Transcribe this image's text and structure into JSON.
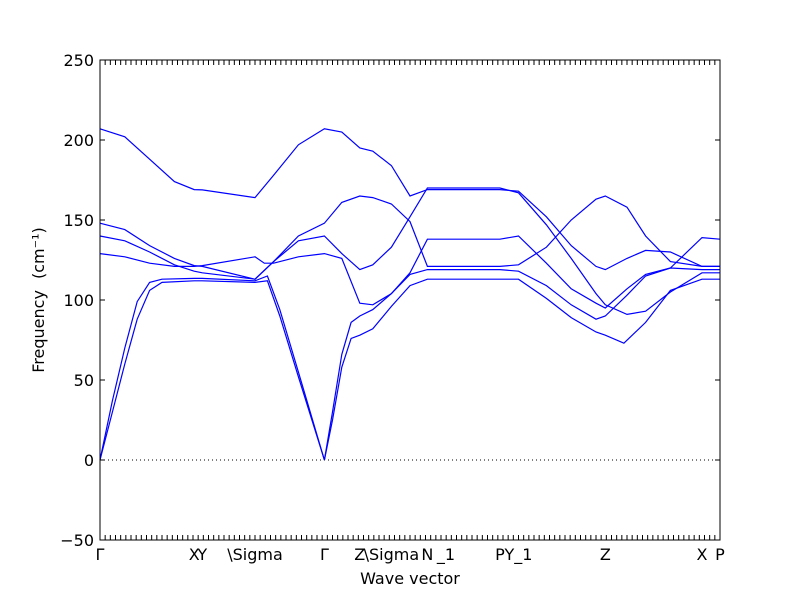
{
  "chart_data": {
    "type": "line",
    "ylabel": "Frequency",
    "ylabel_unit": "(cm⁻¹)",
    "xlabel": "Wave vector",
    "ylim": [
      -50,
      250
    ],
    "yticks": [
      -50,
      0,
      50,
      100,
      150,
      200,
      250
    ],
    "xlim": [
      0,
      1
    ],
    "qpoints": [
      {
        "label": "Γ",
        "x": 0.0
      },
      {
        "label": "X",
        "x": 0.152
      },
      {
        "label": "Y",
        "x": 0.165
      },
      {
        "label": "\\Sigma",
        "x": 0.25
      },
      {
        "label": "Γ",
        "x": 0.362
      },
      {
        "label": "Z",
        "x": 0.419
      },
      {
        "label": "\\Sigma",
        "x": 0.47
      },
      {
        "label": "N",
        "x": 0.528
      },
      {
        "label": "_1",
        "x": 0.558
      },
      {
        "label": "P",
        "x": 0.645
      },
      {
        "label": "Y_1",
        "x": 0.675
      },
      {
        "label": "Z",
        "x": 0.815
      },
      {
        "label": "X",
        "x": 0.971
      },
      {
        "label": "P",
        "x": 1.0
      }
    ],
    "zero_line": true,
    "line_color": "#0000ff",
    "series": [
      {
        "points": [
          [
            0,
            207
          ],
          [
            0.04,
            202
          ],
          [
            0.08,
            188
          ],
          [
            0.12,
            174
          ],
          [
            0.152,
            169
          ],
          [
            0.165,
            168.8
          ],
          [
            0.25,
            164
          ],
          [
            0.28,
            178
          ],
          [
            0.32,
            197
          ],
          [
            0.362,
            207
          ],
          [
            0.39,
            205
          ],
          [
            0.419,
            195
          ],
          [
            0.44,
            193
          ],
          [
            0.47,
            184
          ],
          [
            0.5,
            165
          ],
          [
            0.528,
            169
          ],
          [
            0.6,
            169
          ],
          [
            0.645,
            169
          ],
          [
            0.675,
            168
          ],
          [
            0.72,
            152
          ],
          [
            0.76,
            134
          ],
          [
            0.8,
            121
          ],
          [
            0.815,
            119
          ],
          [
            0.85,
            126
          ],
          [
            0.88,
            131
          ],
          [
            0.92,
            130
          ],
          [
            0.971,
            121
          ],
          [
            1.0,
            121
          ]
        ]
      },
      {
        "points": [
          [
            0,
            148
          ],
          [
            0.04,
            144
          ],
          [
            0.08,
            134
          ],
          [
            0.12,
            126
          ],
          [
            0.152,
            121.5
          ],
          [
            0.165,
            121
          ],
          [
            0.25,
            113
          ],
          [
            0.28,
            124
          ],
          [
            0.32,
            140
          ],
          [
            0.362,
            148
          ],
          [
            0.39,
            161
          ],
          [
            0.419,
            165
          ],
          [
            0.44,
            164
          ],
          [
            0.47,
            160
          ],
          [
            0.5,
            149
          ],
          [
            0.528,
            121
          ],
          [
            0.6,
            121
          ],
          [
            0.645,
            121
          ],
          [
            0.675,
            122
          ],
          [
            0.72,
            133
          ],
          [
            0.76,
            150
          ],
          [
            0.8,
            163
          ],
          [
            0.815,
            165
          ],
          [
            0.85,
            158
          ],
          [
            0.88,
            140
          ],
          [
            0.92,
            124
          ],
          [
            0.971,
            121
          ],
          [
            1.0,
            121
          ]
        ]
      },
      {
        "points": [
          [
            0,
            140
          ],
          [
            0.04,
            137
          ],
          [
            0.08,
            130
          ],
          [
            0.12,
            122
          ],
          [
            0.152,
            118
          ],
          [
            0.165,
            117
          ],
          [
            0.25,
            113
          ],
          [
            0.28,
            124
          ],
          [
            0.32,
            137
          ],
          [
            0.362,
            140
          ],
          [
            0.39,
            129
          ],
          [
            0.419,
            119
          ],
          [
            0.44,
            122
          ],
          [
            0.47,
            133
          ],
          [
            0.5,
            152
          ],
          [
            0.528,
            170
          ],
          [
            0.6,
            170
          ],
          [
            0.645,
            170
          ],
          [
            0.675,
            167
          ],
          [
            0.72,
            147
          ],
          [
            0.76,
            126
          ],
          [
            0.8,
            104
          ],
          [
            0.815,
            97
          ],
          [
            0.85,
            91
          ],
          [
            0.88,
            93
          ],
          [
            0.92,
            105
          ],
          [
            0.971,
            117
          ],
          [
            1.0,
            117
          ]
        ]
      },
      {
        "points": [
          [
            0,
            129
          ],
          [
            0.04,
            127
          ],
          [
            0.08,
            123
          ],
          [
            0.12,
            121
          ],
          [
            0.152,
            121
          ],
          [
            0.165,
            121.5
          ],
          [
            0.25,
            127
          ],
          [
            0.265,
            123
          ],
          [
            0.28,
            123
          ],
          [
            0.32,
            127
          ],
          [
            0.362,
            129
          ],
          [
            0.39,
            126
          ],
          [
            0.419,
            98
          ],
          [
            0.44,
            97
          ],
          [
            0.47,
            104
          ],
          [
            0.5,
            117
          ],
          [
            0.528,
            138
          ],
          [
            0.6,
            138
          ],
          [
            0.645,
            138
          ],
          [
            0.675,
            140
          ],
          [
            0.72,
            123
          ],
          [
            0.76,
            107
          ],
          [
            0.8,
            98
          ],
          [
            0.815,
            95
          ],
          [
            0.85,
            107
          ],
          [
            0.88,
            116
          ],
          [
            0.92,
            120
          ],
          [
            0.971,
            139
          ],
          [
            1.0,
            138
          ]
        ]
      },
      {
        "points": [
          [
            0,
            0
          ],
          [
            0.02,
            37
          ],
          [
            0.04,
            70
          ],
          [
            0.06,
            99
          ],
          [
            0.08,
            111
          ],
          [
            0.1,
            113
          ],
          [
            0.152,
            113.5
          ],
          [
            0.165,
            113.5
          ],
          [
            0.25,
            112
          ],
          [
            0.27,
            115
          ],
          [
            0.29,
            94
          ],
          [
            0.32,
            55
          ],
          [
            0.362,
            0
          ],
          [
            0.375,
            30
          ],
          [
            0.39,
            66
          ],
          [
            0.405,
            86
          ],
          [
            0.419,
            90
          ],
          [
            0.44,
            94
          ],
          [
            0.47,
            104
          ],
          [
            0.5,
            116
          ],
          [
            0.528,
            119
          ],
          [
            0.6,
            119
          ],
          [
            0.645,
            119
          ],
          [
            0.675,
            118
          ],
          [
            0.72,
            109
          ],
          [
            0.76,
            97
          ],
          [
            0.8,
            88
          ],
          [
            0.815,
            90
          ],
          [
            0.85,
            103
          ],
          [
            0.88,
            115
          ],
          [
            0.92,
            120
          ],
          [
            0.971,
            119
          ],
          [
            1.0,
            119
          ]
        ]
      },
      {
        "points": [
          [
            0,
            0
          ],
          [
            0.02,
            30
          ],
          [
            0.04,
            60
          ],
          [
            0.06,
            88
          ],
          [
            0.08,
            106
          ],
          [
            0.1,
            111
          ],
          [
            0.152,
            112
          ],
          [
            0.165,
            112
          ],
          [
            0.25,
            111
          ],
          [
            0.27,
            112
          ],
          [
            0.29,
            90
          ],
          [
            0.32,
            52
          ],
          [
            0.362,
            0
          ],
          [
            0.375,
            25
          ],
          [
            0.39,
            58
          ],
          [
            0.405,
            76
          ],
          [
            0.419,
            78
          ],
          [
            0.44,
            82
          ],
          [
            0.47,
            96
          ],
          [
            0.5,
            109
          ],
          [
            0.528,
            113
          ],
          [
            0.6,
            113
          ],
          [
            0.645,
            113
          ],
          [
            0.675,
            113
          ],
          [
            0.72,
            101
          ],
          [
            0.76,
            89
          ],
          [
            0.8,
            80
          ],
          [
            0.815,
            78
          ],
          [
            0.845,
            73
          ],
          [
            0.88,
            86
          ],
          [
            0.92,
            106
          ],
          [
            0.971,
            113
          ],
          [
            1.0,
            113
          ]
        ]
      }
    ]
  }
}
